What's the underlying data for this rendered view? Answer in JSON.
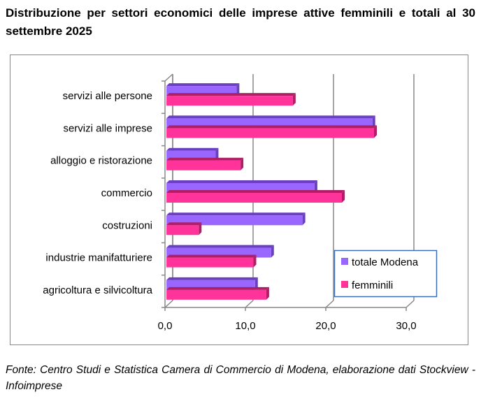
{
  "title": "Distribuzione per settori economici delle imprese attive femminili e totali al 30 settembre 2025",
  "source": "Fonte: Centro Studi e Statistica Camera di Commercio di Modena, elaborazione dati Stockview - Infoimprese",
  "chart_data": {
    "type": "bar",
    "orientation": "horizontal",
    "title": "Distribuzione per settori economici delle imprese attive femminili e totali al 30 settembre 2025",
    "categories": [
      "servizi alle persone",
      "servizi alle imprese",
      "alloggio e ristorazione",
      "commercio",
      "costruzioni",
      "industrie manifatturiere",
      "agricoltura e silvicoltura"
    ],
    "series": [
      {
        "name": "totale Modena",
        "color": "#9966ff",
        "side": "#6a3fc0",
        "values": [
          8.9,
          25.8,
          6.3,
          18.6,
          17.1,
          13.2,
          11.2
        ]
      },
      {
        "name": "femminili",
        "color": "#ff3399",
        "side": "#b01f66",
        "values": [
          15.9,
          26.0,
          9.4,
          22.0,
          4.2,
          11.0,
          12.6
        ]
      }
    ],
    "xticks": [
      "0,0",
      "10,0",
      "20,0",
      "30,0"
    ],
    "xlim": [
      0,
      30
    ],
    "grid": true,
    "legend": "bottom-right",
    "xlabel": "",
    "ylabel": ""
  }
}
